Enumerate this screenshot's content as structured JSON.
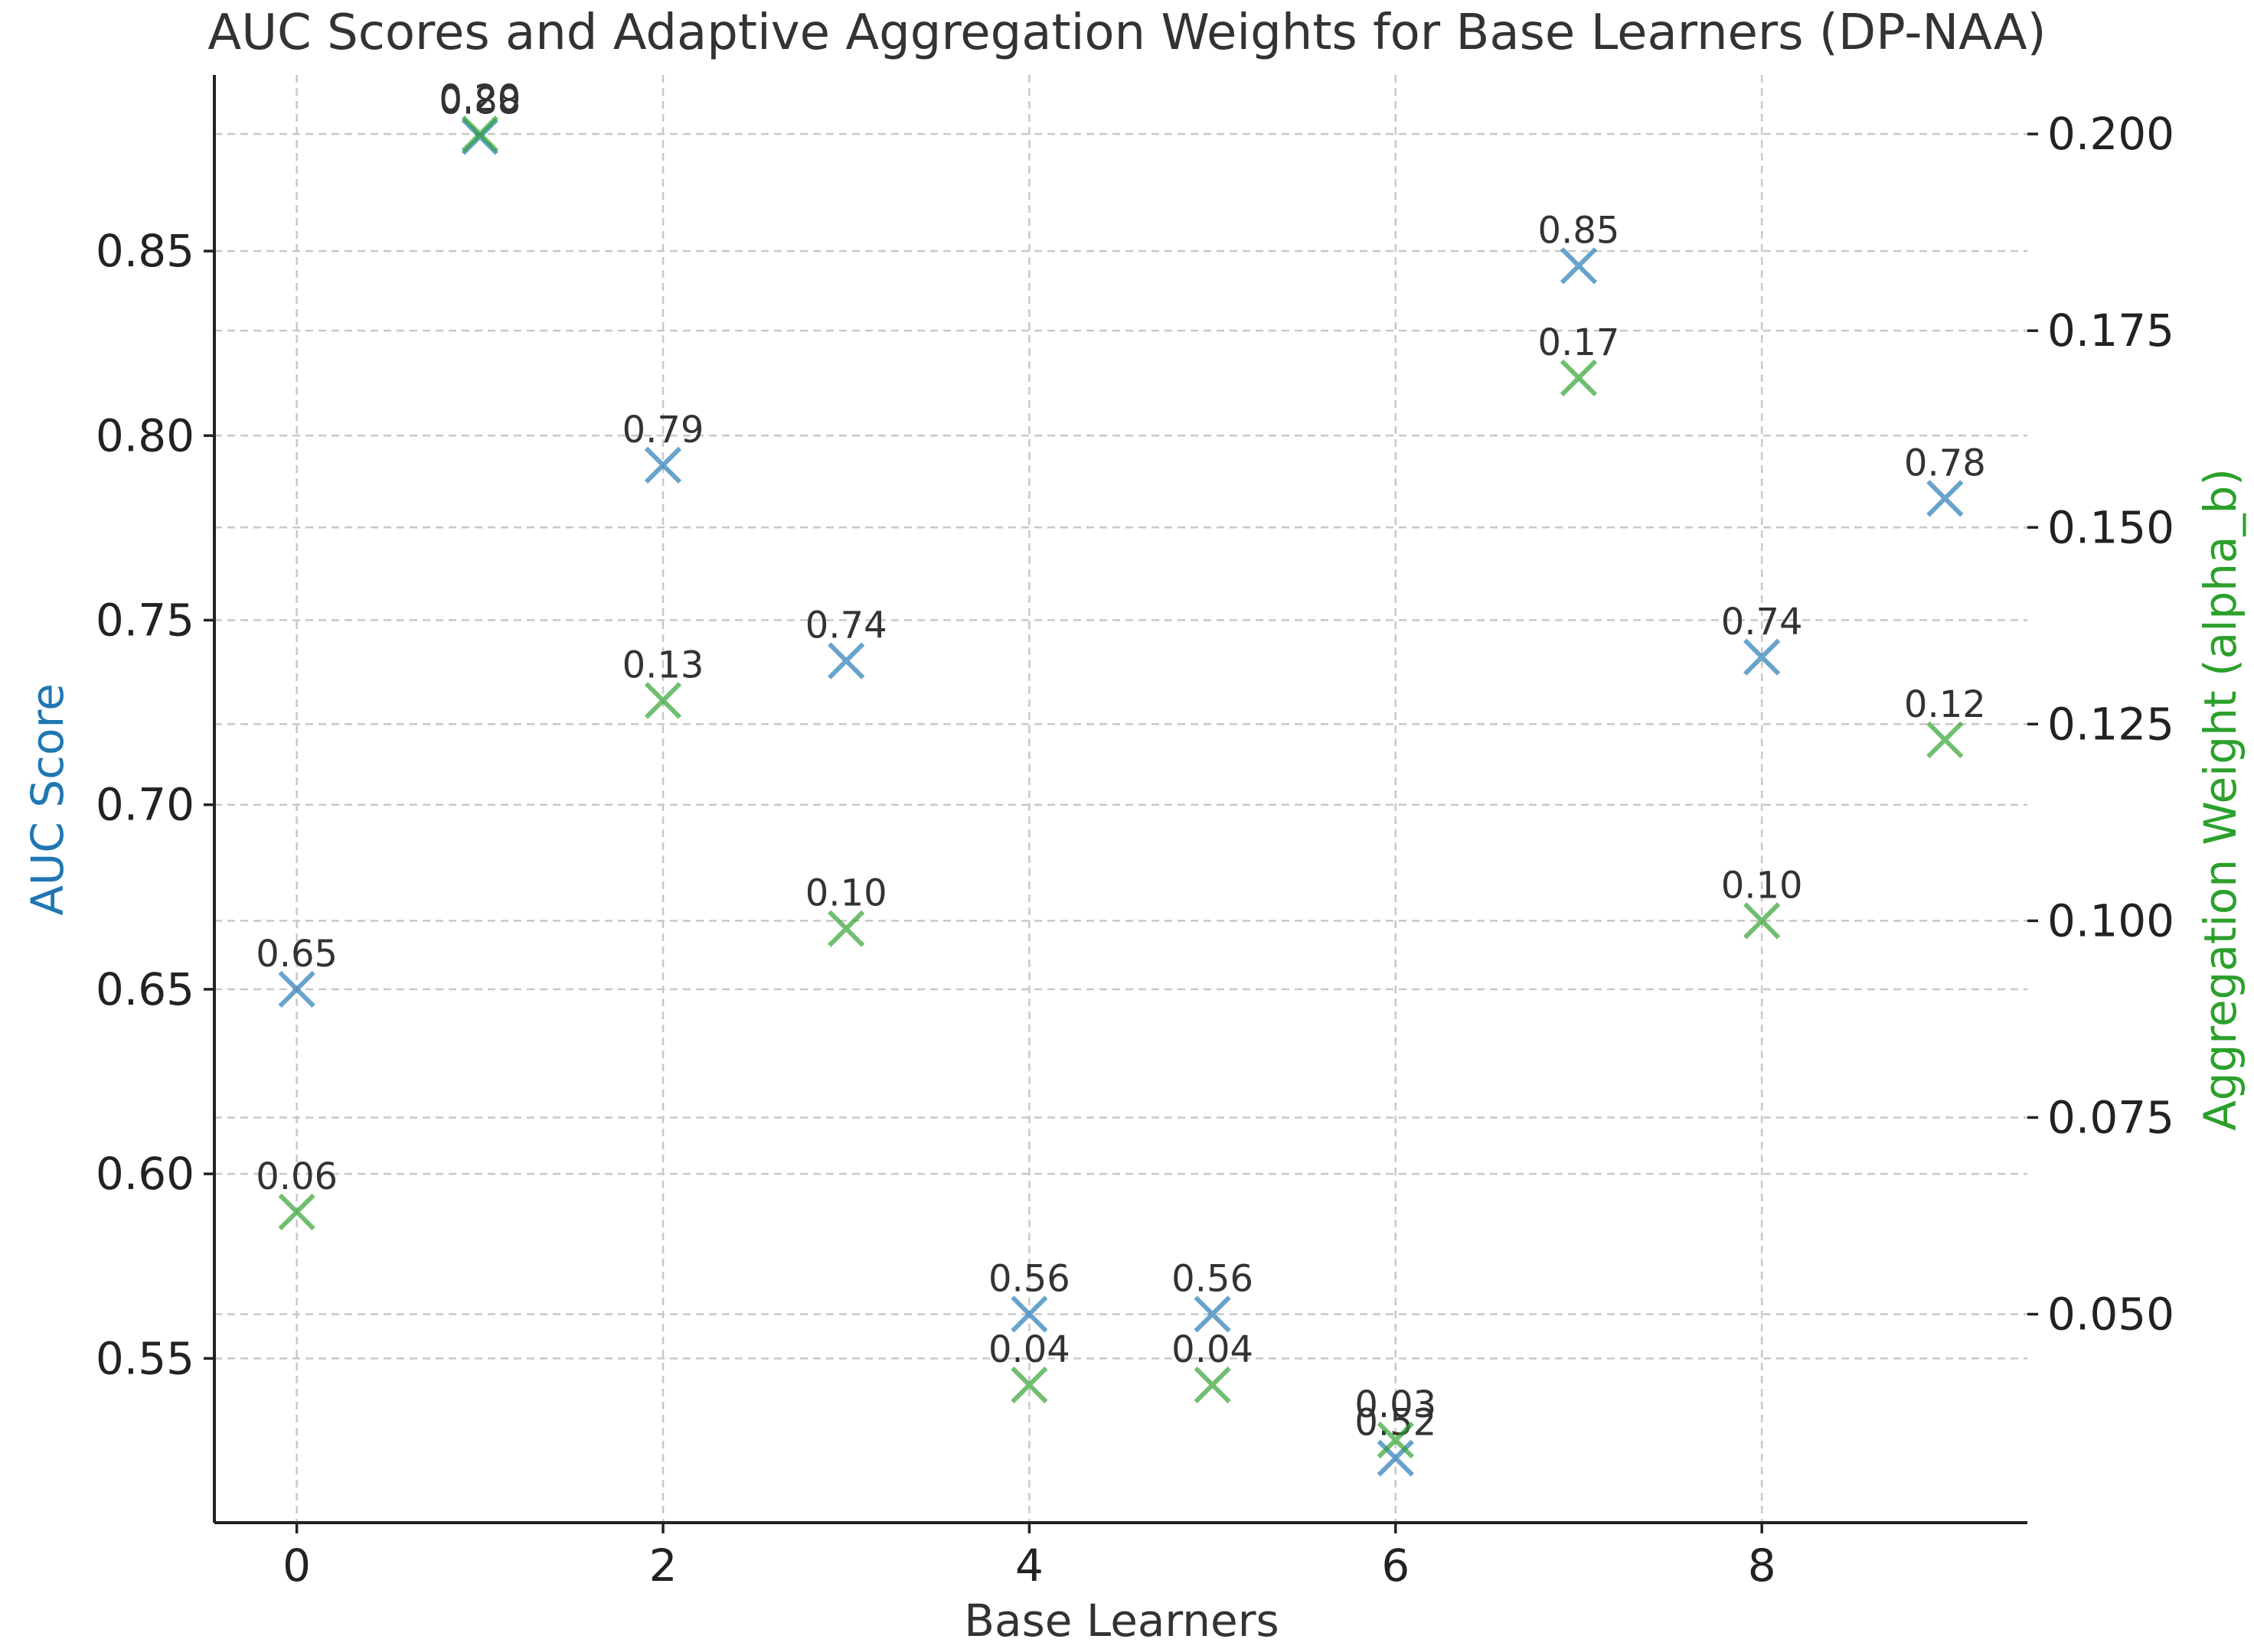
{
  "chart_data": {
    "type": "scatter",
    "title": "AUC Scores and Adaptive Aggregation Weights for Base Learners (DP-NAA)",
    "xlabel": "Base Learners",
    "ylabel": "AUC Score",
    "y2label": "Aggregation Weight (alpha_b)",
    "xlim": [
      -0.45,
      9.45
    ],
    "ylim": [
      0.5055,
      0.8977
    ],
    "y2lim": [
      0.0235,
      0.2075
    ],
    "xticks": [
      0,
      2,
      4,
      6,
      8
    ],
    "yticks": [
      0.55,
      0.6,
      0.65,
      0.7,
      0.75,
      0.8,
      0.85
    ],
    "ytick_labels": [
      "0.55",
      "0.60",
      "0.65",
      "0.70",
      "0.75",
      "0.80",
      "0.85"
    ],
    "y2ticks": [
      0.05,
      0.075,
      0.1,
      0.125,
      0.15,
      0.175,
      0.2
    ],
    "y2tick_labels": [
      "0.050",
      "0.075",
      "0.100",
      "0.125",
      "0.150",
      "0.175",
      "0.200"
    ],
    "grid": true,
    "series": [
      {
        "name": "AUC Score",
        "axis": "left",
        "color": "#1f77b4",
        "marker": "x",
        "x": [
          0,
          1,
          2,
          3,
          4,
          5,
          6,
          7,
          8,
          9
        ],
        "values": [
          0.65,
          0.881,
          0.792,
          0.739,
          0.562,
          0.562,
          0.523,
          0.846,
          0.74,
          0.783
        ],
        "labels": [
          "0.65",
          "0.88",
          "0.79",
          "0.74",
          "0.56",
          "0.56",
          "0.52",
          "0.85",
          "0.74",
          "0.78"
        ]
      },
      {
        "name": "Aggregation Weight (alpha_b)",
        "axis": "right",
        "color": "#2ca02c",
        "marker": "x",
        "x": [
          0,
          1,
          2,
          3,
          4,
          5,
          6,
          7,
          8,
          9
        ],
        "values": [
          0.063,
          0.2,
          0.128,
          0.099,
          0.041,
          0.041,
          0.034,
          0.169,
          0.1,
          0.123
        ],
        "labels": [
          "0.06",
          "0.20",
          "0.13",
          "0.10",
          "0.04",
          "0.04",
          "0.03",
          "0.17",
          "0.10",
          "0.12"
        ]
      }
    ]
  }
}
